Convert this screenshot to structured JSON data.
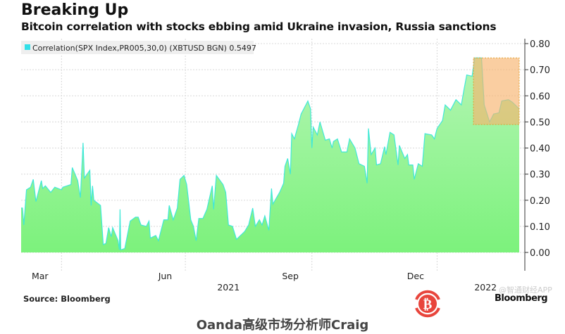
{
  "header": {
    "title": "Breaking Up",
    "subtitle": "Bitcoin correlation with stocks ebbing amid Ukraine invasion, Russia sanctions"
  },
  "footer": {
    "source": "Source: Bloomberg",
    "logo": "Bloomberg",
    "watermark": "@智通财经APP",
    "caption": "Oanda高级市场分析师Craig"
  },
  "colors": {
    "fill_top": "#b4f5b4",
    "fill_bottom": "#7cf27c",
    "line": "#40e8d8",
    "highlight": "#f7b46e",
    "legend_swatch": "#33e0e8",
    "bitcoin": "#e8453c"
  },
  "chart_data": {
    "type": "area",
    "title": "Breaking Up",
    "legend": {
      "label": "Correlation(SPX Index,PR005,30,0) (XBTUSD BGN) 0.5497",
      "placement": "top-left"
    },
    "x_unit": "days since mid-Feb 2021",
    "xlim": [
      0,
      370
    ],
    "ylim": [
      0,
      0.8
    ],
    "y_ticks": [
      "0.00",
      "0.10",
      "0.20",
      "0.30",
      "0.40",
      "0.50",
      "0.60",
      "0.70",
      "0.80"
    ],
    "y_tick_values": [
      0,
      0.1,
      0.2,
      0.3,
      0.4,
      0.5,
      0.6,
      0.7,
      0.8
    ],
    "x_ticks": [
      {
        "label": "Mar",
        "x": 14
      },
      {
        "label": "Jun",
        "x": 107
      },
      {
        "label": "Sep",
        "x": 200
      },
      {
        "label": "Dec",
        "x": 293
      }
    ],
    "x_gridlines": [
      30,
      122,
      216,
      309
    ],
    "year_labels": [
      {
        "label": "2021",
        "x": 154
      },
      {
        "label": "2022",
        "x": 345
      }
    ],
    "axis_side": "right",
    "grid": true,
    "highlight": {
      "x": [
        336,
        370
      ],
      "y": [
        0.49,
        0.745
      ]
    },
    "x": [
      0,
      1,
      2,
      4,
      7,
      9,
      11,
      15,
      16,
      18,
      22,
      25,
      30,
      31,
      34,
      37,
      38,
      42,
      44,
      46,
      47,
      51,
      52,
      53,
      54,
      59,
      61,
      63,
      65,
      67,
      68,
      72,
      73,
      73.5,
      74,
      77,
      81,
      85,
      87,
      89,
      93,
      95,
      96,
      100,
      102,
      106,
      109,
      110,
      113,
      116,
      118,
      121,
      123,
      126,
      128,
      130,
      132,
      135,
      138,
      142,
      143,
      145,
      150,
      152,
      154,
      157,
      160,
      166,
      169,
      172,
      174,
      177,
      179,
      181,
      184,
      186,
      187,
      192,
      195,
      196,
      198,
      200,
      201,
      203,
      206,
      208,
      213,
      215,
      216,
      217,
      220,
      222,
      226,
      229,
      231,
      232,
      235,
      238,
      242,
      244,
      248,
      251,
      255,
      257,
      258,
      260,
      263,
      264,
      267,
      270,
      271,
      274,
      277,
      280,
      281,
      285,
      287,
      288,
      291,
      292,
      295,
      298,
      300,
      305,
      307,
      309,
      313,
      315,
      319,
      323,
      327,
      329,
      331,
      335,
      337,
      342,
      344,
      348,
      351,
      355,
      357,
      362,
      365,
      369,
      370
    ],
    "values": [
      0.17,
      0.17,
      0.105,
      0.24,
      0.25,
      0.28,
      0.195,
      0.275,
      0.245,
      0.255,
      0.23,
      0.25,
      0.24,
      0.25,
      0.255,
      0.26,
      0.325,
      0.275,
      0.21,
      0.42,
      0.285,
      0.315,
      0.18,
      0.255,
      0.2,
      0.18,
      0.03,
      0.035,
      0.095,
      0.06,
      0.095,
      0.045,
      0.01,
      0.165,
      0.01,
      0.015,
      0.12,
      0.135,
      0.135,
      0.105,
      0.1,
      0.12,
      0.055,
      0.065,
      0.045,
      0.125,
      0.125,
      0.18,
      0.125,
      0.17,
      0.28,
      0.295,
      0.26,
      0.125,
      0.1,
      0.045,
      0.13,
      0.13,
      0.165,
      0.255,
      0.165,
      0.295,
      0.26,
      0.23,
      0.105,
      0.1,
      0.05,
      0.08,
      0.105,
      0.17,
      0.1,
      0.125,
      0.105,
      0.14,
      0.085,
      0.245,
      0.185,
      0.23,
      0.265,
      0.33,
      0.36,
      0.3,
      0.455,
      0.435,
      0.49,
      0.53,
      0.58,
      0.55,
      0.4,
      0.48,
      0.45,
      0.5,
      0.43,
      0.435,
      0.4,
      0.425,
      0.435,
      0.385,
      0.385,
      0.435,
      0.4,
      0.34,
      0.33,
      0.265,
      0.475,
      0.375,
      0.4,
      0.335,
      0.34,
      0.405,
      0.375,
      0.46,
      0.45,
      0.335,
      0.41,
      0.36,
      0.375,
      0.335,
      0.335,
      0.28,
      0.34,
      0.33,
      0.455,
      0.45,
      0.435,
      0.475,
      0.505,
      0.565,
      0.545,
      0.585,
      0.565,
      0.625,
      0.68,
      0.675,
      0.745,
      0.745,
      0.565,
      0.5,
      0.53,
      0.535,
      0.58,
      0.585,
      0.575,
      0.555,
      0.55
    ]
  }
}
